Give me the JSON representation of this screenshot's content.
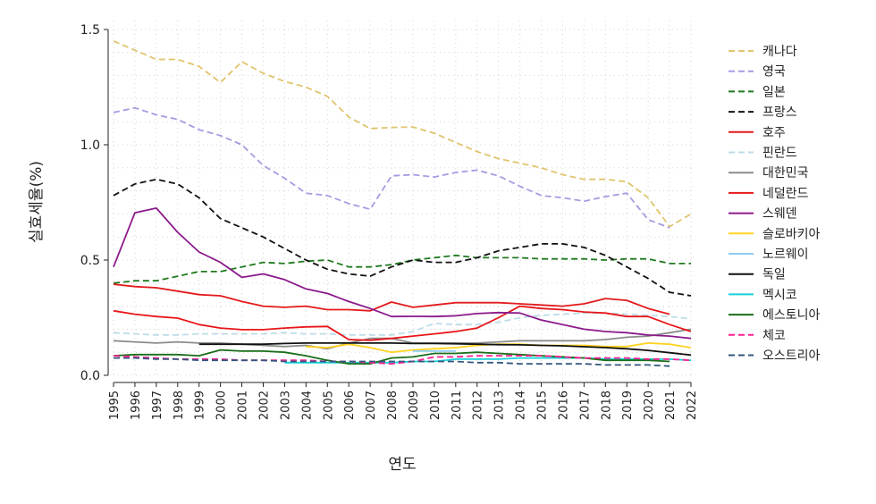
{
  "chart_data": {
    "type": "line",
    "title": "",
    "xlabel": "연도",
    "ylabel": "실효세율(%)",
    "xlim": [
      1995,
      2022
    ],
    "ylim": [
      0,
      1.5
    ],
    "yticks": [
      "0.0",
      "0.5",
      "1.0",
      "1.5"
    ],
    "ytick_values": [
      0,
      0.5,
      1.0,
      1.5
    ],
    "x": [
      1995,
      1996,
      1997,
      1998,
      1999,
      2000,
      2001,
      2002,
      2003,
      2004,
      2005,
      2006,
      2007,
      2008,
      2009,
      2010,
      2011,
      2012,
      2013,
      2014,
      2015,
      2016,
      2017,
      2018,
      2019,
      2020,
      2021,
      2022
    ],
    "grid": true,
    "legend_position": "right",
    "series": [
      {
        "name": "캐나다",
        "color": "#e0c46c",
        "dashed": true,
        "values": [
          1.45,
          1.41,
          1.37,
          1.37,
          1.34,
          1.27,
          1.36,
          1.31,
          1.275,
          1.25,
          1.21,
          1.12,
          1.07,
          1.075,
          1.077,
          1.05,
          1.01,
          0.97,
          0.94,
          0.92,
          0.9,
          0.87,
          0.85,
          0.85,
          0.84,
          0.77,
          0.645,
          0.7
        ]
      },
      {
        "name": "영국",
        "color": "#a29de2",
        "dashed": true,
        "values": [
          1.14,
          1.16,
          1.13,
          1.11,
          1.065,
          1.04,
          1.0,
          0.91,
          0.855,
          0.79,
          0.78,
          0.745,
          0.72,
          0.865,
          0.87,
          0.86,
          0.88,
          0.89,
          0.865,
          0.82,
          0.78,
          0.77,
          0.755,
          0.775,
          0.79,
          0.675,
          0.64,
          null
        ]
      },
      {
        "name": "일본",
        "color": "#1f7a1f",
        "dashed": true,
        "values": [
          0.4,
          0.41,
          0.41,
          0.43,
          0.45,
          0.45,
          0.47,
          0.49,
          0.485,
          0.495,
          0.5,
          0.47,
          0.47,
          0.48,
          0.5,
          0.51,
          0.52,
          0.51,
          0.51,
          0.51,
          0.505,
          0.505,
          0.505,
          0.5,
          0.505,
          0.505,
          0.485,
          0.485
        ]
      },
      {
        "name": "프랑스",
        "color": "#111111",
        "dashed": true,
        "values": [
          0.78,
          0.83,
          0.85,
          0.83,
          0.77,
          0.68,
          0.64,
          0.6,
          0.55,
          0.5,
          0.46,
          0.44,
          0.43,
          0.47,
          0.5,
          0.49,
          0.49,
          0.51,
          0.54,
          0.555,
          0.57,
          0.57,
          0.555,
          0.52,
          0.47,
          0.42,
          0.36,
          0.345
        ]
      },
      {
        "name": "호주",
        "color": "#e31a1c",
        "dashed": false,
        "values": [
          0.395,
          0.385,
          0.38,
          0.365,
          0.35,
          0.345,
          0.32,
          0.3,
          0.295,
          0.3,
          0.285,
          0.285,
          0.28,
          0.318,
          0.295,
          0.305,
          0.315,
          0.315,
          0.315,
          0.31,
          0.305,
          0.3,
          0.31,
          0.333,
          0.325,
          0.29,
          0.265,
          null
        ]
      },
      {
        "name": "핀란드",
        "color": "#bcdce8",
        "dashed": true,
        "values": [
          0.185,
          0.18,
          0.175,
          0.175,
          0.18,
          0.18,
          0.18,
          0.18,
          0.185,
          0.18,
          0.18,
          0.175,
          0.175,
          0.175,
          0.19,
          0.225,
          0.22,
          0.22,
          0.23,
          0.25,
          0.26,
          0.265,
          0.27,
          0.27,
          0.265,
          0.26,
          0.255,
          0.245
        ]
      },
      {
        "name": "대한민국",
        "color": "#8c8c8c",
        "dashed": false,
        "values": [
          0.15,
          0.145,
          0.14,
          0.145,
          0.14,
          0.14,
          0.135,
          0.13,
          0.125,
          0.13,
          0.115,
          0.14,
          0.16,
          0.16,
          0.14,
          0.14,
          0.14,
          0.14,
          0.145,
          0.15,
          0.15,
          0.15,
          0.15,
          0.155,
          0.165,
          0.17,
          0.185,
          0.2
        ]
      },
      {
        "name": "네덜란드",
        "color": "#e8161a",
        "dashed": false,
        "values": [
          0.28,
          0.265,
          0.255,
          0.248,
          0.22,
          0.205,
          0.198,
          0.198,
          0.205,
          0.21,
          0.212,
          0.155,
          0.152,
          0.16,
          0.17,
          0.18,
          0.19,
          0.205,
          0.25,
          0.3,
          0.29,
          0.285,
          0.275,
          0.27,
          0.255,
          0.255,
          0.22,
          0.19
        ]
      },
      {
        "name": "스웨덴",
        "color": "#8b1a8b",
        "dashed": false,
        "values": [
          0.47,
          0.705,
          0.725,
          0.62,
          0.535,
          0.49,
          0.425,
          0.44,
          0.415,
          0.375,
          0.355,
          0.32,
          0.29,
          0.255,
          0.256,
          0.255,
          0.258,
          0.268,
          0.272,
          0.27,
          0.24,
          0.22,
          0.2,
          0.19,
          0.185,
          0.175,
          0.17,
          0.16
        ]
      },
      {
        "name": "슬로바키아",
        "color": "#ffd21f",
        "dashed": false,
        "values": [
          null,
          null,
          null,
          null,
          null,
          null,
          null,
          null,
          null,
          0.125,
          0.12,
          0.135,
          0.12,
          0.1,
          0.11,
          0.115,
          0.12,
          0.13,
          0.135,
          0.135,
          0.13,
          0.13,
          0.13,
          0.125,
          0.125,
          0.14,
          0.135,
          0.12
        ]
      },
      {
        "name": "노르웨이",
        "color": "#8ecdf0",
        "dashed": false,
        "values": [
          null,
          null,
          null,
          null,
          null,
          null,
          null,
          null,
          null,
          null,
          null,
          null,
          null,
          null,
          0.105,
          0.105,
          0.105,
          null,
          null,
          null,
          null,
          null,
          null,
          null,
          null,
          null,
          null,
          null
        ]
      },
      {
        "name": "독일",
        "color": "#111111",
        "dashed": false,
        "values": [
          null,
          null,
          null,
          null,
          0.135,
          0.135,
          0.135,
          0.135,
          0.138,
          0.14,
          0.14,
          0.14,
          0.14,
          0.14,
          0.138,
          0.138,
          0.137,
          0.135,
          0.133,
          0.132,
          0.13,
          0.128,
          0.124,
          0.12,
          0.115,
          0.108,
          0.098,
          0.088
        ]
      },
      {
        "name": "멕시코",
        "color": "#16d0d8",
        "dashed": false,
        "values": [
          null,
          null,
          null,
          null,
          null,
          null,
          null,
          null,
          0.055,
          0.055,
          0.055,
          0.055,
          0.055,
          0.055,
          0.06,
          0.06,
          0.07,
          0.07,
          0.07,
          0.075,
          0.075,
          0.075,
          0.075,
          0.07,
          0.07,
          0.07,
          0.07,
          0.065
        ]
      },
      {
        "name": "에스토니아",
        "color": "#1a6e1a",
        "dashed": false,
        "values": [
          0.085,
          0.09,
          0.09,
          0.09,
          0.085,
          0.11,
          0.105,
          0.105,
          0.1,
          0.085,
          0.065,
          0.05,
          0.05,
          0.075,
          0.08,
          0.095,
          0.095,
          0.1,
          0.095,
          0.09,
          0.085,
          0.08,
          0.075,
          0.065,
          0.065,
          0.065,
          0.06,
          null
        ]
      },
      {
        "name": "체코",
        "color": "#ff1f8f",
        "dashed": true,
        "values": [
          0.085,
          0.08,
          0.075,
          0.07,
          0.07,
          0.07,
          0.065,
          0.065,
          0.065,
          0.065,
          0.06,
          0.06,
          0.055,
          0.05,
          0.06,
          0.08,
          0.08,
          0.085,
          0.085,
          0.085,
          0.085,
          0.08,
          0.075,
          0.075,
          0.075,
          0.07,
          0.07,
          0.065
        ]
      },
      {
        "name": "오스트리아",
        "color": "#34557e",
        "dashed": true,
        "values": [
          0.075,
          0.075,
          0.07,
          0.07,
          0.065,
          0.065,
          0.065,
          0.065,
          0.06,
          0.06,
          0.06,
          0.06,
          0.06,
          0.06,
          0.06,
          0.06,
          0.06,
          0.055,
          0.055,
          0.05,
          0.05,
          0.05,
          0.05,
          0.045,
          0.045,
          0.045,
          0.04,
          null
        ]
      }
    ]
  }
}
